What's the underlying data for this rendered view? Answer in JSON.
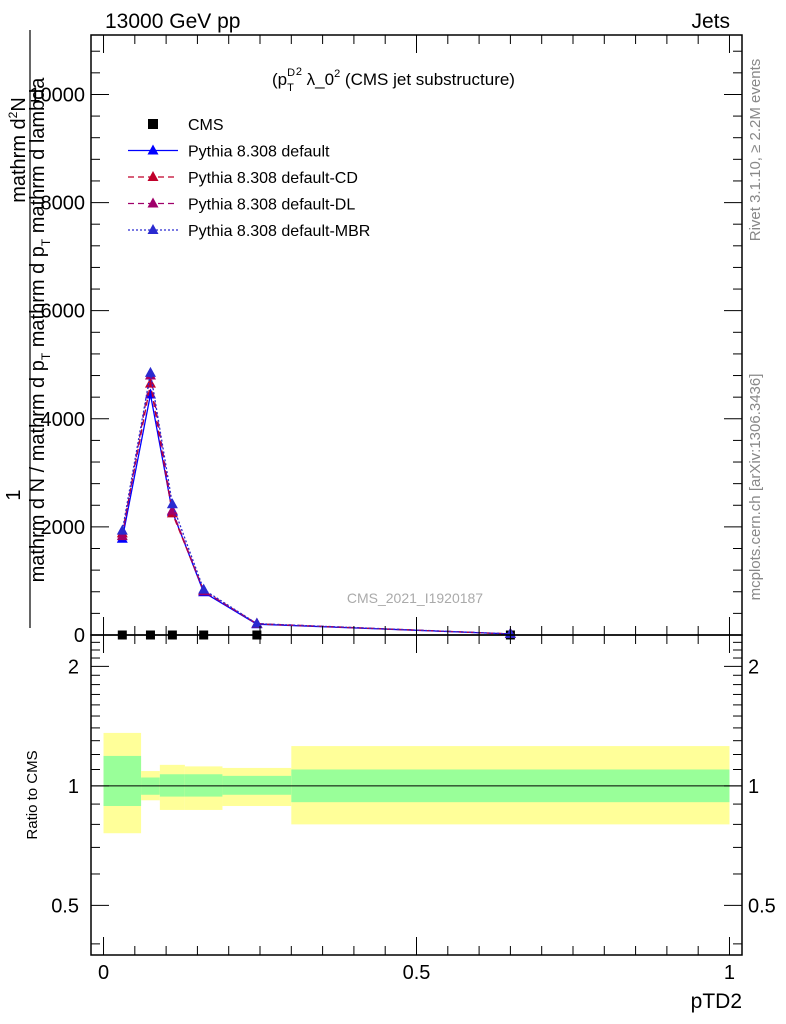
{
  "header": {
    "left": "13000 GeV pp",
    "right": "Jets"
  },
  "side": {
    "rivet": "Rivet 3.1.10, ≥ 2.2M events",
    "mcplots": "mcplots.cern.ch [arXiv:1306.3436]"
  },
  "watermark": "CMS_2021_I1920187",
  "chart_data": [
    {
      "type": "line",
      "title_parts": {
        "lead": "(p",
        "sub": "T",
        "sup": "D",
        "exp": "2",
        "rest": " λ_0",
        "exp2": "2",
        "tail": " (CMS jet substructure)"
      },
      "ylabel_parts": {
        "numerator": "1",
        "den_a": "mathrm d",
        "den_b": "N / mathrm d p",
        "den_sub": "T",
        "den_c": " mathrm d p",
        "den_sub2": "T",
        "den_d": " mathrm d lambda",
        "top": "mathrm d",
        "top_sup": "2",
        "top_b": "N"
      },
      "xlim": [
        -0.02,
        1.02
      ],
      "ylim": [
        0,
        11100
      ],
      "yticks": [
        0,
        2000,
        4000,
        6000,
        8000,
        10000
      ],
      "ytick_labels": [
        "0",
        "2000",
        "4000",
        "6000",
        "8000",
        "10000"
      ],
      "x": [
        0.03,
        0.075,
        0.11,
        0.16,
        0.245,
        0.65
      ],
      "series": [
        {
          "name": "CMS",
          "color": "#000000",
          "marker": "square",
          "values": [
            0,
            0,
            0,
            0,
            0,
            0
          ]
        },
        {
          "name": "Pythia 8.308 default",
          "color": "#0000ff",
          "marker": "triangle",
          "dash": "solid",
          "values": [
            1780,
            4450,
            2280,
            790,
            200,
            20
          ]
        },
        {
          "name": "Pythia 8.308 default-CD",
          "color": "#c0002a",
          "marker": "triangle",
          "dash": "6,4",
          "values": [
            1880,
            4650,
            2250,
            820,
            205,
            20
          ]
        },
        {
          "name": "Pythia 8.308 default-DL",
          "color": "#a0006a",
          "marker": "triangle",
          "dash": "6,4",
          "values": [
            1830,
            4800,
            2300,
            810,
            210,
            20
          ]
        },
        {
          "name": "Pythia 8.308 default-MBR",
          "color": "#2a2ad0",
          "marker": "triangle",
          "dash": "2,2",
          "values": [
            1930,
            4850,
            2420,
            840,
            210,
            20
          ]
        }
      ]
    },
    {
      "type": "area",
      "ylabel": "Ratio to CMS",
      "xlabel": "pTD2",
      "ylim": [
        0.375,
        2.4
      ],
      "yticks": [
        0.5,
        1,
        2
      ],
      "ytick_labels": [
        "0.5",
        "1",
        "2"
      ],
      "xticks": [
        0,
        0.5,
        1
      ],
      "xtick_labels": [
        "0",
        "0.5",
        "1"
      ],
      "bins": [
        {
          "lo": 0.0,
          "hi": 0.06,
          "stat_lo": 0.89,
          "stat_hi": 1.19,
          "tot_lo": 0.76,
          "tot_hi": 1.36
        },
        {
          "lo": 0.06,
          "hi": 0.09,
          "stat_lo": 0.95,
          "stat_hi": 1.05,
          "tot_lo": 0.92,
          "tot_hi": 1.09
        },
        {
          "lo": 0.09,
          "hi": 0.13,
          "stat_lo": 0.94,
          "stat_hi": 1.07,
          "tot_lo": 0.87,
          "tot_hi": 1.13
        },
        {
          "lo": 0.13,
          "hi": 0.19,
          "stat_lo": 0.94,
          "stat_hi": 1.07,
          "tot_lo": 0.87,
          "tot_hi": 1.12
        },
        {
          "lo": 0.19,
          "hi": 0.3,
          "stat_lo": 0.95,
          "stat_hi": 1.06,
          "tot_lo": 0.89,
          "tot_hi": 1.11
        },
        {
          "lo": 0.3,
          "hi": 1.0,
          "stat_lo": 0.91,
          "stat_hi": 1.1,
          "tot_lo": 0.8,
          "tot_hi": 1.26
        }
      ],
      "colors": {
        "stat": "#99ff99",
        "total": "#ffff99"
      }
    }
  ]
}
